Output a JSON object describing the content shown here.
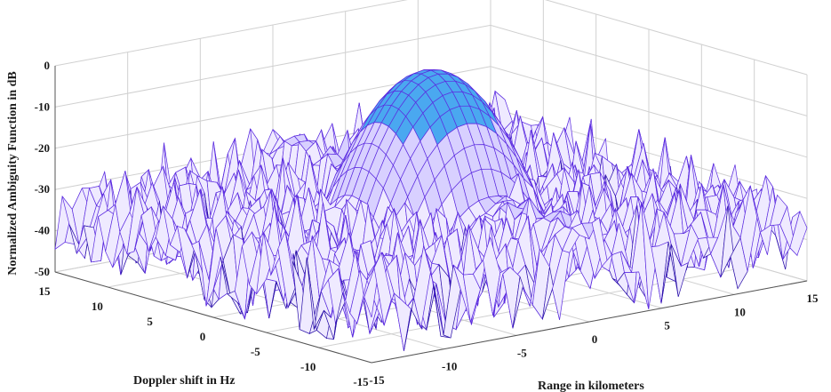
{
  "chart_data": {
    "type": "surface",
    "title": "",
    "xlabel": "Range in kilometers",
    "ylabel": "Doppler shift in Hz",
    "zlabel": "Normalized Ambiguity Function in dB",
    "x_ticks": [
      "-15",
      "-10",
      "-5",
      "0",
      "5",
      "10",
      "15"
    ],
    "y_ticks": [
      "15",
      "10",
      "5",
      "0",
      "-5",
      "-10",
      "-15"
    ],
    "z_ticks": [
      "0",
      "-10",
      "-20",
      "-30",
      "-40",
      "-50"
    ],
    "xlim": [
      -15,
      15
    ],
    "ylim": [
      -15,
      15
    ],
    "zlim": [
      -50,
      0
    ],
    "peak": {
      "x": 0,
      "y": 0,
      "z": 0
    },
    "sidelobe_floor_db": -50,
    "typical_sidelobe_range_db": [
      -45,
      -25
    ],
    "grid": true,
    "colors": {
      "mesh": "#5b2be0",
      "mesh_dark": "#2a10a8",
      "peak": "#4aa8f0",
      "grid": "#d0d0d0"
    }
  }
}
